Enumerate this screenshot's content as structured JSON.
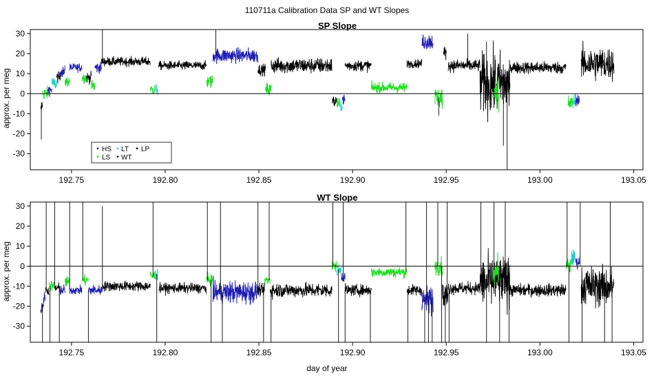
{
  "figure": {
    "title": "110711a   Calibration Data SP and WT Slopes",
    "xlabel": "day of year"
  },
  "colors": {
    "HS": "#1f1fb4",
    "LS": "#22dd22",
    "LT": "#22cccc",
    "WT": "#000000",
    "LP": "#000000",
    "axis": "#000000"
  },
  "chart_data": [
    {
      "type": "line",
      "title": "SP Slope",
      "ylabel": "approx. per meg",
      "xlabel": "",
      "xlim": [
        192.728,
        193.055
      ],
      "ylim": [
        -38,
        32
      ],
      "xticks": [
        192.75,
        192.8,
        192.85,
        192.9,
        192.95,
        193.0,
        193.05
      ],
      "xtick_labels": [
        "192.75",
        "192.80",
        "192.85",
        "192.90",
        "192.95",
        "193.00",
        "193.05"
      ],
      "yticks": [
        -30,
        -20,
        -10,
        0,
        10,
        20,
        30
      ],
      "ytick_labels": [
        "-30",
        "-20",
        "-10",
        "0",
        "10",
        "20",
        "30"
      ],
      "hline": 0,
      "legend": {
        "placement": "bottom-left",
        "entries": [
          {
            "name": "HS",
            "color": "#1f1fb4"
          },
          {
            "name": "LT",
            "color": "#22cccc"
          },
          {
            "name": "LP",
            "color": "#000000"
          },
          {
            "name": "LS",
            "color": "#22dd22"
          },
          {
            "name": "WT",
            "color": "#000000"
          }
        ]
      },
      "segments": [
        {
          "series": "WT",
          "x0": 192.7335,
          "x1": 192.7345,
          "level": -7,
          "noise": 3,
          "trend": 5
        },
        {
          "series": "LS",
          "x0": 192.7345,
          "x1": 192.7375,
          "level": 0,
          "noise": 2.5
        },
        {
          "series": "HS",
          "x0": 192.7375,
          "x1": 192.7395,
          "level": 2,
          "noise": 2
        },
        {
          "series": "LT",
          "x0": 192.7395,
          "x1": 192.742,
          "level": 5,
          "noise": 2.5
        },
        {
          "series": "WT",
          "x0": 192.742,
          "x1": 192.744,
          "level": 8,
          "noise": 2
        },
        {
          "series": "HS",
          "x0": 192.744,
          "x1": 192.7465,
          "level": 11,
          "noise": 2
        },
        {
          "series": "LS",
          "x0": 192.7465,
          "x1": 192.749,
          "level": 6,
          "noise": 2
        },
        {
          "series": "HS",
          "x0": 192.749,
          "x1": 192.7555,
          "level": 13,
          "noise": 1.5
        },
        {
          "series": "LS",
          "x0": 192.7555,
          "x1": 192.758,
          "level": 8,
          "noise": 2
        },
        {
          "series": "WT",
          "x0": 192.758,
          "x1": 192.7605,
          "level": 8,
          "noise": 2
        },
        {
          "series": "LS",
          "x0": 192.7605,
          "x1": 192.7625,
          "level": 4,
          "noise": 2.5
        },
        {
          "series": "HS",
          "x0": 192.7625,
          "x1": 192.766,
          "level": 13,
          "noise": 2
        },
        {
          "series": "WT",
          "x0": 192.766,
          "x1": 192.792,
          "level": 16,
          "noise": 1.6
        },
        {
          "series": "LS",
          "x0": 192.792,
          "x1": 192.7945,
          "level": 2,
          "noise": 2
        },
        {
          "series": "LT",
          "x0": 192.7945,
          "x1": 192.796,
          "level": 2,
          "noise": 2
        },
        {
          "series": "WT",
          "x0": 192.7965,
          "x1": 192.822,
          "level": 14,
          "noise": 1.6
        },
        {
          "series": "LS",
          "x0": 192.822,
          "x1": 192.8255,
          "level": 6,
          "noise": 2.5
        },
        {
          "series": "HS",
          "x0": 192.8255,
          "x1": 192.8495,
          "level": 19,
          "noise": 2.6
        },
        {
          "series": "WT",
          "x0": 192.8495,
          "x1": 192.8535,
          "level": 12,
          "noise": 2
        },
        {
          "series": "LS",
          "x0": 192.8535,
          "x1": 192.8565,
          "level": 2,
          "noise": 2.5
        },
        {
          "series": "WT",
          "x0": 192.8565,
          "x1": 192.889,
          "level": 14,
          "noise": 2.8
        },
        {
          "series": "WT",
          "x0": 192.889,
          "x1": 192.8915,
          "level": -4,
          "noise": 2.5
        },
        {
          "series": "LS",
          "x0": 192.8915,
          "x1": 192.893,
          "level": -5,
          "noise": 2
        },
        {
          "series": "LT",
          "x0": 192.893,
          "x1": 192.8945,
          "level": -6,
          "noise": 2
        },
        {
          "series": "HS",
          "x0": 192.8945,
          "x1": 192.896,
          "level": -3,
          "noise": 2
        },
        {
          "series": "WT",
          "x0": 192.896,
          "x1": 192.91,
          "level": 14,
          "noise": 2
        },
        {
          "series": "LS",
          "x0": 192.91,
          "x1": 192.929,
          "level": 3,
          "noise": 1.8
        },
        {
          "series": "WT",
          "x0": 192.929,
          "x1": 192.937,
          "level": 15,
          "noise": 1.5
        },
        {
          "series": "HS",
          "x0": 192.937,
          "x1": 192.943,
          "level": 26,
          "noise": 3
        },
        {
          "series": "LS",
          "x0": 192.944,
          "x1": 192.948,
          "level": -2,
          "noise": 4
        },
        {
          "series": "WT",
          "x0": 192.9485,
          "x1": 192.95,
          "level": 20,
          "noise": 2.5
        },
        {
          "series": "WT",
          "x0": 192.951,
          "x1": 192.968,
          "level": 14,
          "noise": 2.2
        },
        {
          "series": "WT",
          "x0": 192.968,
          "x1": 192.984,
          "level": 5,
          "noise": 11
        },
        {
          "series": "LS",
          "x0": 192.975,
          "x1": 192.978,
          "level": 0,
          "noise": 5
        },
        {
          "series": "WT",
          "x0": 192.984,
          "x1": 193.014,
          "level": 13,
          "noise": 2.2
        },
        {
          "series": "LS",
          "x0": 193.015,
          "x1": 193.0175,
          "level": -5,
          "noise": 3
        },
        {
          "series": "LT",
          "x0": 193.0175,
          "x1": 193.019,
          "level": -4,
          "noise": 3
        },
        {
          "series": "HS",
          "x0": 193.019,
          "x1": 193.021,
          "level": -3,
          "noise": 2
        },
        {
          "series": "WT",
          "x0": 193.022,
          "x1": 193.0395,
          "level": 15,
          "noise": 6
        }
      ],
      "spikes": [
        {
          "x": 192.7339,
          "y": -23
        },
        {
          "x": 192.7665,
          "y": 32
        },
        {
          "x": 192.827,
          "y": 32
        },
        {
          "x": 192.946,
          "y": -11
        },
        {
          "x": 192.9805,
          "y": -26
        },
        {
          "x": 192.9825,
          "y": -38
        },
        {
          "x": 192.9615,
          "y": 30
        },
        {
          "x": 192.9715,
          "y": 26
        }
      ]
    },
    {
      "type": "line",
      "title": "WT Slope",
      "ylabel": "approx. per meg",
      "xlabel": "day of year",
      "xlim": [
        192.728,
        193.055
      ],
      "ylim": [
        -38,
        32
      ],
      "xticks": [
        192.75,
        192.8,
        192.85,
        192.9,
        192.95,
        193.0,
        193.05
      ],
      "xtick_labels": [
        "192.75",
        "192.80",
        "192.85",
        "192.90",
        "192.95",
        "193.00",
        "193.05"
      ],
      "yticks": [
        -30,
        -20,
        -10,
        0,
        10,
        20,
        30
      ],
      "ytick_labels": [
        "-30",
        "-20",
        "-10",
        "0",
        "10",
        "20",
        "30"
      ],
      "hline": 0,
      "segments": [
        {
          "series": "HS",
          "x0": 192.7335,
          "x1": 192.736,
          "level": -19,
          "noise": 2.5,
          "trend": 8
        },
        {
          "series": "WT",
          "x0": 192.736,
          "x1": 192.738,
          "level": -12,
          "noise": 1.8
        },
        {
          "series": "LS",
          "x0": 192.738,
          "x1": 192.741,
          "level": -10,
          "noise": 2
        },
        {
          "series": "WT",
          "x0": 192.741,
          "x1": 192.744,
          "level": -11,
          "noise": 2
        },
        {
          "series": "HS",
          "x0": 192.744,
          "x1": 192.7465,
          "level": -12,
          "noise": 2
        },
        {
          "series": "LS",
          "x0": 192.7465,
          "x1": 192.749,
          "level": -8,
          "noise": 2
        },
        {
          "series": "HS",
          "x0": 192.749,
          "x1": 192.7555,
          "level": -12,
          "noise": 1.5
        },
        {
          "series": "LS",
          "x0": 192.7555,
          "x1": 192.759,
          "level": -7,
          "noise": 2
        },
        {
          "series": "HS",
          "x0": 192.759,
          "x1": 192.7665,
          "level": -12,
          "noise": 1.8
        },
        {
          "series": "WT",
          "x0": 192.7665,
          "x1": 192.792,
          "level": -10,
          "noise": 1.8
        },
        {
          "series": "LS",
          "x0": 192.792,
          "x1": 192.7945,
          "level": -5,
          "noise": 2
        },
        {
          "series": "LT",
          "x0": 192.7945,
          "x1": 192.796,
          "level": -4,
          "noise": 2
        },
        {
          "series": "WT",
          "x0": 192.7965,
          "x1": 192.822,
          "level": -11,
          "noise": 1.8
        },
        {
          "series": "LS",
          "x0": 192.822,
          "x1": 192.8255,
          "level": -7,
          "noise": 2
        },
        {
          "series": "HS",
          "x0": 192.8255,
          "x1": 192.849,
          "level": -13,
          "noise": 4
        },
        {
          "series": "WT",
          "x0": 192.849,
          "x1": 192.853,
          "level": -12,
          "noise": 2
        },
        {
          "series": "LS",
          "x0": 192.853,
          "x1": 192.856,
          "level": -7,
          "noise": 2
        },
        {
          "series": "WT",
          "x0": 192.856,
          "x1": 192.889,
          "level": -12,
          "noise": 2.6
        },
        {
          "series": "LS",
          "x0": 192.889,
          "x1": 192.8915,
          "level": 0,
          "noise": 2
        },
        {
          "series": "LT",
          "x0": 192.8915,
          "x1": 192.894,
          "level": -2,
          "noise": 2
        },
        {
          "series": "HS",
          "x0": 192.894,
          "x1": 192.896,
          "level": -5,
          "noise": 2
        },
        {
          "series": "WT",
          "x0": 192.896,
          "x1": 192.91,
          "level": -12,
          "noise": 2
        },
        {
          "series": "LS",
          "x0": 192.91,
          "x1": 192.929,
          "level": -3,
          "noise": 1.8
        },
        {
          "series": "WT",
          "x0": 192.929,
          "x1": 192.937,
          "level": -12,
          "noise": 2
        },
        {
          "series": "HS",
          "x0": 192.937,
          "x1": 192.943,
          "level": -17,
          "noise": 5
        },
        {
          "series": "LS",
          "x0": 192.944,
          "x1": 192.948,
          "level": 0,
          "noise": 3
        },
        {
          "series": "WT",
          "x0": 192.948,
          "x1": 192.951,
          "level": -15,
          "noise": 5
        },
        {
          "series": "WT",
          "x0": 192.951,
          "x1": 192.968,
          "level": -11,
          "noise": 2.2
        },
        {
          "series": "WT",
          "x0": 192.968,
          "x1": 192.984,
          "level": -8,
          "noise": 9
        },
        {
          "series": "LS",
          "x0": 192.975,
          "x1": 192.978,
          "level": -2,
          "noise": 5
        },
        {
          "series": "WT",
          "x0": 192.984,
          "x1": 193.014,
          "level": -12,
          "noise": 2.2
        },
        {
          "series": "LS",
          "x0": 193.014,
          "x1": 193.0165,
          "level": 0,
          "noise": 3
        },
        {
          "series": "LT",
          "x0": 193.0165,
          "x1": 193.019,
          "level": 4,
          "noise": 3
        },
        {
          "series": "HS",
          "x0": 193.019,
          "x1": 193.021,
          "level": 2,
          "noise": 2
        },
        {
          "series": "WT",
          "x0": 193.022,
          "x1": 193.0395,
          "level": -10,
          "noise": 7
        }
      ],
      "spikes": [
        {
          "x": 192.7345,
          "y": -38
        },
        {
          "x": 192.7365,
          "y": 32
        },
        {
          "x": 192.7385,
          "y": -38
        },
        {
          "x": 192.741,
          "y": 32
        },
        {
          "x": 192.7435,
          "y": -38
        },
        {
          "x": 192.749,
          "y": 32
        },
        {
          "x": 192.756,
          "y": 32
        },
        {
          "x": 192.759,
          "y": -38
        },
        {
          "x": 192.7665,
          "y": 30
        },
        {
          "x": 192.7935,
          "y": 32
        },
        {
          "x": 192.7955,
          "y": -38
        },
        {
          "x": 192.8225,
          "y": 32
        },
        {
          "x": 192.8245,
          "y": -38
        },
        {
          "x": 192.8295,
          "y": 32
        },
        {
          "x": 192.8305,
          "y": -38
        },
        {
          "x": 192.8495,
          "y": 32
        },
        {
          "x": 192.8525,
          "y": -38
        },
        {
          "x": 192.8555,
          "y": 32
        },
        {
          "x": 192.8565,
          "y": -38
        },
        {
          "x": 192.8895,
          "y": 32
        },
        {
          "x": 192.8925,
          "y": -38
        },
        {
          "x": 192.895,
          "y": 32
        },
        {
          "x": 192.896,
          "y": -38
        },
        {
          "x": 192.9095,
          "y": -38
        },
        {
          "x": 192.9285,
          "y": 32
        },
        {
          "x": 192.9295,
          "y": -38
        },
        {
          "x": 192.9385,
          "y": -38
        },
        {
          "x": 192.9395,
          "y": 32
        },
        {
          "x": 192.9405,
          "y": -38
        },
        {
          "x": 192.9425,
          "y": -38
        },
        {
          "x": 192.9455,
          "y": 32
        },
        {
          "x": 192.9475,
          "y": -38
        },
        {
          "x": 192.9495,
          "y": -38
        },
        {
          "x": 192.9505,
          "y": 32
        },
        {
          "x": 192.9515,
          "y": -38
        },
        {
          "x": 192.9685,
          "y": 32
        },
        {
          "x": 192.9715,
          "y": -38
        },
        {
          "x": 192.9755,
          "y": 32
        },
        {
          "x": 192.9785,
          "y": -38
        },
        {
          "x": 192.9815,
          "y": 32
        },
        {
          "x": 192.9835,
          "y": -38
        },
        {
          "x": 193.0145,
          "y": 32
        },
        {
          "x": 193.0155,
          "y": -38
        },
        {
          "x": 193.0215,
          "y": 32
        },
        {
          "x": 193.0225,
          "y": -38
        },
        {
          "x": 193.0375,
          "y": 32
        },
        {
          "x": 193.0385,
          "y": -38
        },
        {
          "x": 193.0345,
          "y": -38
        }
      ]
    }
  ]
}
